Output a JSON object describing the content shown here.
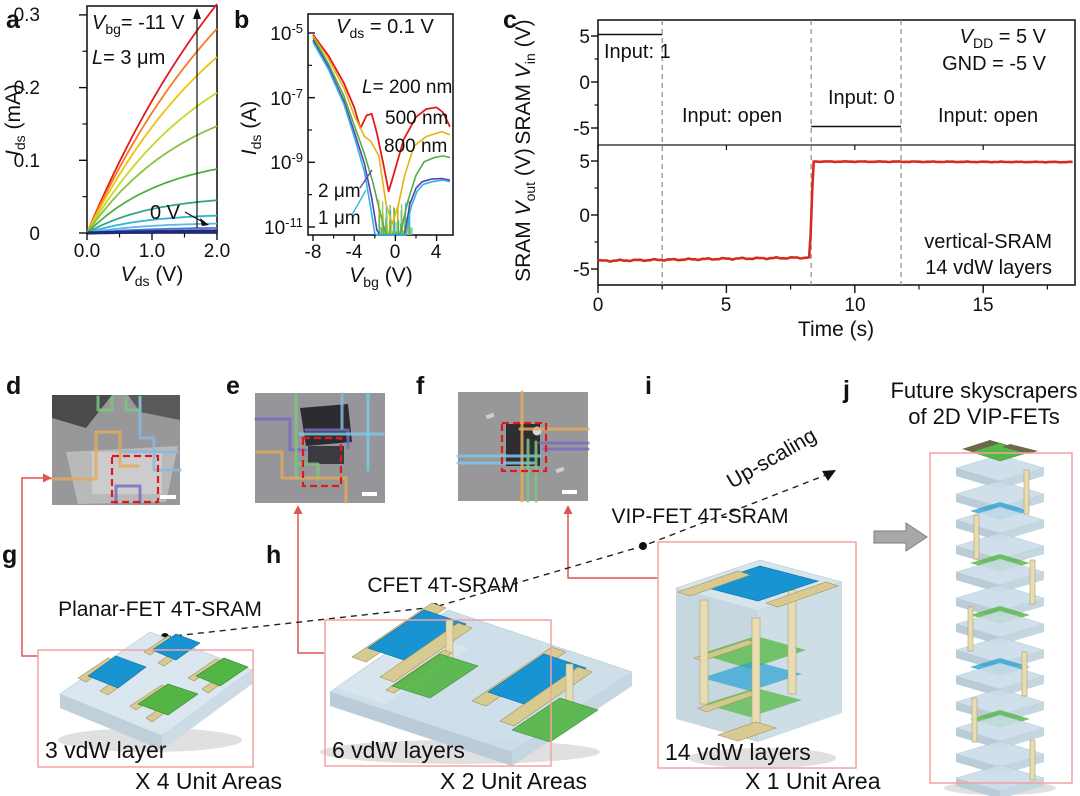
{
  "labels": {
    "a": "a",
    "b": "b",
    "c": "c",
    "d": "d",
    "e": "e",
    "f": "f",
    "g": "g",
    "h": "h",
    "i": "i",
    "j": "j"
  },
  "colors": {
    "accent_red": "#e31a1c",
    "unit_red": "#e11c1c",
    "pink_box": "#f2a2a2",
    "connector": "#e05555",
    "trace_red": "#d62b20",
    "scalebar": "#ffffff"
  },
  "panel_a": {
    "ylabel": {
      "it": "I",
      "sub": "ds",
      "rest": " (mA)"
    },
    "xlabel": {
      "it": "V",
      "sub": "ds",
      "rest": " (V)"
    },
    "yticks": [
      "0.3",
      "0.2",
      "0.1",
      "0"
    ],
    "xticks": [
      "0.0",
      "1.0",
      "2.0"
    ],
    "ann_vbg": {
      "it": "V",
      "sub": "bg",
      "rest": "= -11 V"
    },
    "ann_len": {
      "it": "L",
      "rest": "= 3 μm"
    },
    "ann_zero": "0 V"
  },
  "panel_b": {
    "title": {
      "it": "V",
      "sub": "ds",
      "rest": " = 0.1 V"
    },
    "ylabel": {
      "it": "I",
      "sub": "ds",
      "rest": " (A)"
    },
    "xlabel": {
      "it": "V",
      "sub": "bg",
      "rest": " (V)"
    },
    "yticks": [
      {
        "base": "10",
        "exp": "-5"
      },
      {
        "base": "10",
        "exp": "-7"
      },
      {
        "base": "10",
        "exp": "-9"
      },
      {
        "base": "10",
        "exp": "-11"
      }
    ],
    "xticks": [
      "-8",
      "-4",
      "0",
      "4"
    ],
    "legend": [
      {
        "it": "L",
        "rest": "= 200 nm",
        "color": "#e31a1c"
      },
      {
        "rest": "500 nm",
        "color": "#e3b50e"
      },
      {
        "rest": "800 nm",
        "color": "#4fae44"
      },
      {
        "rest": "2 μm",
        "color": "#5b3fa8"
      },
      {
        "rest": "1 μm",
        "color": "#30b4e8"
      }
    ]
  },
  "panel_c": {
    "ylabel_top": {
      "pre": "SRAM ",
      "it": "V",
      "sub": "in",
      "rest": " (V)"
    },
    "ylabel_bottom": {
      "pre": "SRAM ",
      "it": "V",
      "sub": "out",
      "rest": " (V)"
    },
    "yticks": [
      "5",
      "0",
      "-5"
    ],
    "xticks": [
      "0",
      "5",
      "10",
      "15"
    ],
    "xlabel": "Time (s)",
    "ann": {
      "input1": "Input: 1",
      "open1": "Input: open",
      "input0": "Input: 0",
      "open2": "Input: open"
    },
    "supply": {
      "vdd": {
        "it": "V",
        "sub": "DD",
        "rest": " = 5 V"
      },
      "gnd": "GND = -5 V"
    },
    "device": {
      "line1": "vertical-SRAM",
      "line2": "14 vdW layers"
    }
  },
  "bottom": {
    "g_title": "Planar-FET 4T-SRAM",
    "h_title": "CFET 4T-SRAM",
    "i_title": "VIP-FET 4T-SRAM",
    "j_title1": "Future skyscrapers",
    "j_title2": "of 2D VIP-FETs",
    "upscaling": "Up-scaling",
    "g_layers": "3 vdW layer",
    "h_layers": "6 vdW layers",
    "i_layers": "14 vdW layers",
    "g_units": "X 4 Unit Areas",
    "h_units": "X 2 Unit Areas",
    "i_units": "X 1 Unit Area"
  },
  "chart_data": [
    {
      "id": "a",
      "type": "line",
      "title": "",
      "xlabel": "V_ds (V)",
      "ylabel": "I_ds (mA)",
      "xlim": [
        0,
        2
      ],
      "ylim": [
        0,
        0.315
      ],
      "xticks": [
        0,
        1,
        2
      ],
      "yticks": [
        0,
        0.1,
        0.2,
        0.3
      ],
      "x_minor": [
        0.5,
        1.5
      ],
      "y_minor": [
        0.05,
        0.15,
        0.25
      ],
      "annotations": [
        "V_bg = -11 V",
        "L = 3 μm",
        "0 V curve at bottom",
        "arrow indicates Vbg from 0 V to -11 V"
      ],
      "series": [
        {
          "name": "Vbg=-11V",
          "color": "#e31a1c",
          "end_mA": 0.315,
          "tau": 3.2,
          "w": 1.8
        },
        {
          "name": "Vbg=-10V",
          "color": "#f57c1f",
          "end_mA": 0.281,
          "tau": 2.8,
          "w": 1.8
        },
        {
          "name": "Vbg=-9V",
          "color": "#f0c20e",
          "end_mA": 0.242,
          "tau": 2.4,
          "w": 1.8
        },
        {
          "name": "Vbg=-8V",
          "color": "#c5d82b",
          "end_mA": 0.193,
          "tau": 2.0,
          "w": 1.8
        },
        {
          "name": "Vbg=-7V",
          "color": "#86c440",
          "end_mA": 0.147,
          "tau": 1.6,
          "w": 1.8
        },
        {
          "name": "Vbg=-6V",
          "color": "#4fae44",
          "end_mA": 0.088,
          "tau": 1.2,
          "w": 1.8
        },
        {
          "name": "Vbg=-5V",
          "color": "#33a58c",
          "end_mA": 0.045,
          "tau": 1.0,
          "w": 1.8
        },
        {
          "name": "Vbg=-4V",
          "color": "#2fb3cf",
          "end_mA": 0.024,
          "tau": 0.9,
          "w": 1.8
        },
        {
          "name": "Vbg=-3V",
          "color": "#5ab8ea",
          "end_mA": 0.013,
          "tau": 0.9,
          "w": 1.8
        },
        {
          "name": "Vbg=-2V",
          "color": "#4f74d2",
          "end_mA": 0.007,
          "tau": 1.0,
          "w": 1.8
        },
        {
          "name": "Vbg=-1V",
          "color": "#3b4fb4",
          "end_mA": 0.004,
          "tau": 1.0,
          "w": 1.8
        },
        {
          "name": "Vbg=0V",
          "color": "#1f2a80",
          "end_mA": 0.002,
          "tau": 1.2,
          "w": 3.2
        }
      ]
    },
    {
      "id": "b",
      "type": "line",
      "yscale": "log10",
      "xlabel": "V_bg (V)",
      "ylabel": "I_ds (A)",
      "xlim": [
        -8.5,
        5.6
      ],
      "ylog_lim": [
        -11.25,
        -4.5
      ],
      "xticks": [
        -8,
        -4,
        0,
        4
      ],
      "x_minor": [
        -6,
        -2,
        2
      ],
      "yticks_exp": [
        -5,
        -7,
        -9,
        -11
      ],
      "y_minor_exp": [
        -6,
        -8,
        -10
      ],
      "title": "V_ds = 0.1 V",
      "series": [
        {
          "name": "L=200nm",
          "color": "#e31a1c",
          "w": 1.8,
          "points": [
            [
              -8,
              -5.05
            ],
            [
              -6.5,
              -5.7
            ],
            [
              -5,
              -6.55
            ],
            [
              -4,
              -7.3
            ],
            [
              -3.4,
              -7.95
            ],
            [
              -2.8,
              -7.55
            ],
            [
              -2.3,
              -7.5
            ],
            [
              -1.8,
              -8.1
            ],
            [
              -1.2,
              -9.0
            ],
            [
              -0.65,
              -9.9
            ],
            [
              -0.1,
              -9.3
            ],
            [
              0.8,
              -8.3
            ],
            [
              2,
              -7.6
            ],
            [
              3,
              -7.35
            ],
            [
              4,
              -7.3
            ],
            [
              4.6,
              -7.45
            ],
            [
              5.3,
              -7.9
            ]
          ]
        },
        {
          "name": "L=500nm",
          "color": "#e3b50e",
          "w": 1.6,
          "points": [
            [
              -8,
              -5.1
            ],
            [
              -6.5,
              -5.8
            ],
            [
              -5,
              -6.7
            ],
            [
              -4,
              -7.55
            ],
            [
              -3,
              -8.2
            ],
            [
              -2.4,
              -8.35
            ],
            [
              -1.6,
              -8.8
            ],
            [
              -0.9,
              -10.3
            ],
            [
              -0.3,
              -10.9
            ],
            [
              0.3,
              -10.3
            ],
            [
              0.9,
              -9.4
            ],
            [
              1.8,
              -8.5
            ],
            [
              3,
              -8.2
            ],
            [
              4.5,
              -8.05
            ],
            [
              5.3,
              -8.15
            ]
          ]
        },
        {
          "name": "L=800nm",
          "color": "#4fae44",
          "w": 1.6,
          "points": [
            [
              -8,
              -5.15
            ],
            [
              -6.5,
              -5.95
            ],
            [
              -5,
              -6.95
            ],
            [
              -4,
              -7.85
            ],
            [
              -3,
              -8.75
            ],
            [
              -2.2,
              -9.6
            ],
            [
              -1.6,
              -10.4
            ],
            [
              -0.9,
              -11.3
            ],
            [
              0.5,
              -11.2
            ],
            [
              1.2,
              -10.2
            ],
            [
              2,
              -9.4
            ],
            [
              2.8,
              -8.98
            ],
            [
              3.8,
              -8.85
            ],
            [
              4.6,
              -8.8
            ],
            [
              5.3,
              -8.85
            ]
          ]
        },
        {
          "name": "L=2um",
          "color": "#5b3fa8",
          "w": 1.6,
          "points": [
            [
              -8,
              -5.22
            ],
            [
              -6.5,
              -6.05
            ],
            [
              -5,
              -7.1
            ],
            [
              -4,
              -8.05
            ],
            [
              -3,
              -9.05
            ],
            [
              -2.3,
              -10.1
            ],
            [
              -1.8,
              -11.1
            ],
            [
              -1.5,
              -11.4
            ],
            [
              0.9,
              -11.3
            ],
            [
              1.4,
              -10.3
            ],
            [
              2,
              -9.8
            ],
            [
              2.6,
              -9.6
            ],
            [
              3.5,
              -9.52
            ],
            [
              4.5,
              -9.5
            ],
            [
              5.3,
              -9.55
            ]
          ]
        },
        {
          "name": "L=1um",
          "color": "#30b4e8",
          "w": 1.6,
          "points": [
            [
              -8,
              -5.28
            ],
            [
              -6.5,
              -6.12
            ],
            [
              -5,
              -7.2
            ],
            [
              -4,
              -8.2
            ],
            [
              -3,
              -9.3
            ],
            [
              -2.4,
              -10.4
            ],
            [
              -2,
              -11.2
            ],
            [
              -1.8,
              -11.5
            ],
            [
              1.0,
              -11.4
            ],
            [
              1.5,
              -10.4
            ],
            [
              2.1,
              -9.9
            ],
            [
              2.7,
              -9.68
            ],
            [
              3.6,
              -9.6
            ],
            [
              4.6,
              -9.55
            ],
            [
              5.3,
              -9.6
            ]
          ]
        }
      ],
      "noise_band": {
        "x_range": [
          -1.6,
          1.6
        ],
        "log_top": -10.0,
        "colors": [
          "#e3b50e",
          "#4fae44",
          "#30b4e8",
          "#86c440"
        ]
      }
    },
    {
      "id": "c",
      "type": "step",
      "xlabel": "Time (s)",
      "ylabel_top": "SRAM V_in (V)",
      "ylabel_bottom": "SRAM V_out (V)",
      "time_range": [
        0,
        18.5
      ],
      "xticks": [
        0,
        5,
        10,
        15
      ],
      "x_minor": [
        2.5,
        7.5,
        12.5,
        17.5
      ],
      "yticks": [
        5,
        0,
        -5
      ],
      "y_minor": [
        2.5,
        -2.5
      ],
      "vin_segments": [
        {
          "t0": 0,
          "t1": 2.5,
          "v": 5,
          "label": "Input: 1"
        },
        {
          "t0": 8.3,
          "t1": 11.8,
          "v": -5,
          "label": "Input: 0"
        }
      ],
      "dashed_times": [
        2.5,
        8.3,
        11.8
      ],
      "vout_points": [
        [
          0,
          -4.25
        ],
        [
          2.5,
          -4.15
        ],
        [
          5,
          -4.05
        ],
        [
          8.25,
          -3.95
        ],
        [
          8.38,
          4.95
        ],
        [
          18.5,
          4.9
        ]
      ],
      "supply": {
        "VDD": "5 V",
        "GND": "-5 V"
      },
      "device": "vertical-SRAM, 14 vdW layers",
      "trace_color": "#d62b20"
    }
  ]
}
